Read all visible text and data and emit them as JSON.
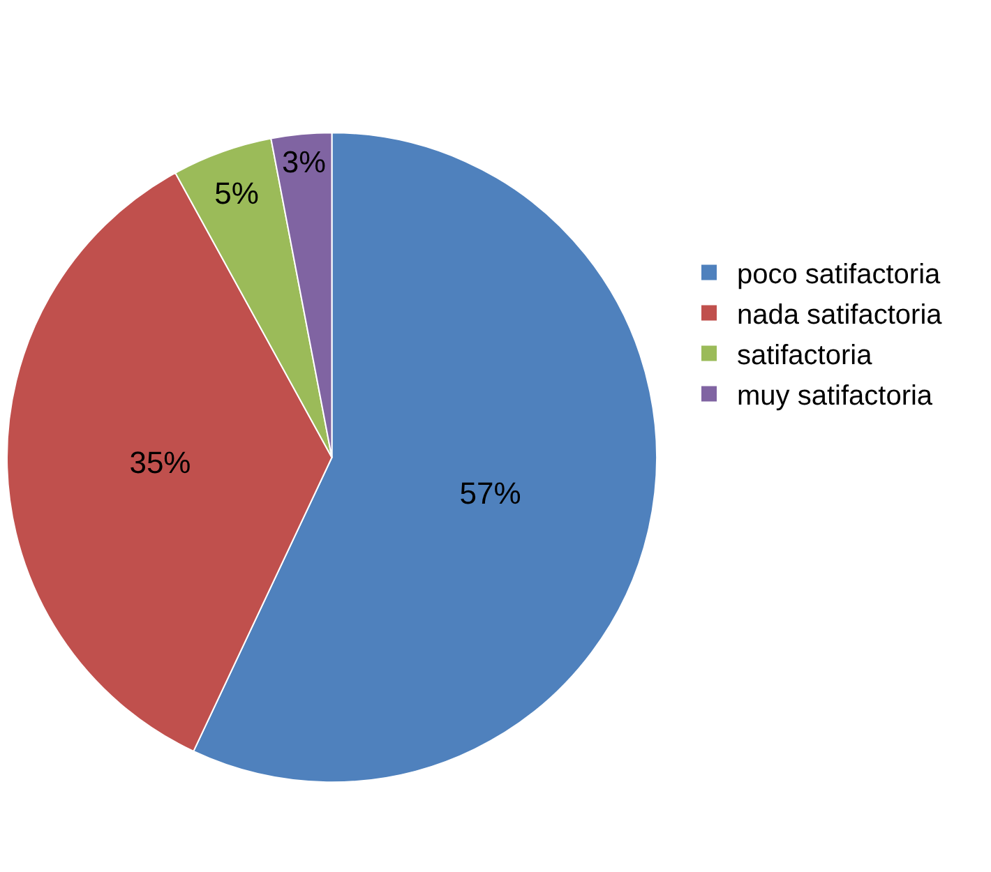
{
  "chart_data": {
    "type": "pie",
    "categories": [
      "poco satifactoria",
      "nada satifactoria",
      "satifactoria",
      "muy satifactoria"
    ],
    "values": [
      57,
      35,
      5,
      3
    ],
    "colors": [
      "#4f81bd",
      "#c0504d",
      "#9bbb59",
      "#8064a2"
    ],
    "value_labels": [
      "57%",
      "35%",
      "5%",
      "3%"
    ],
    "legend": "right"
  }
}
